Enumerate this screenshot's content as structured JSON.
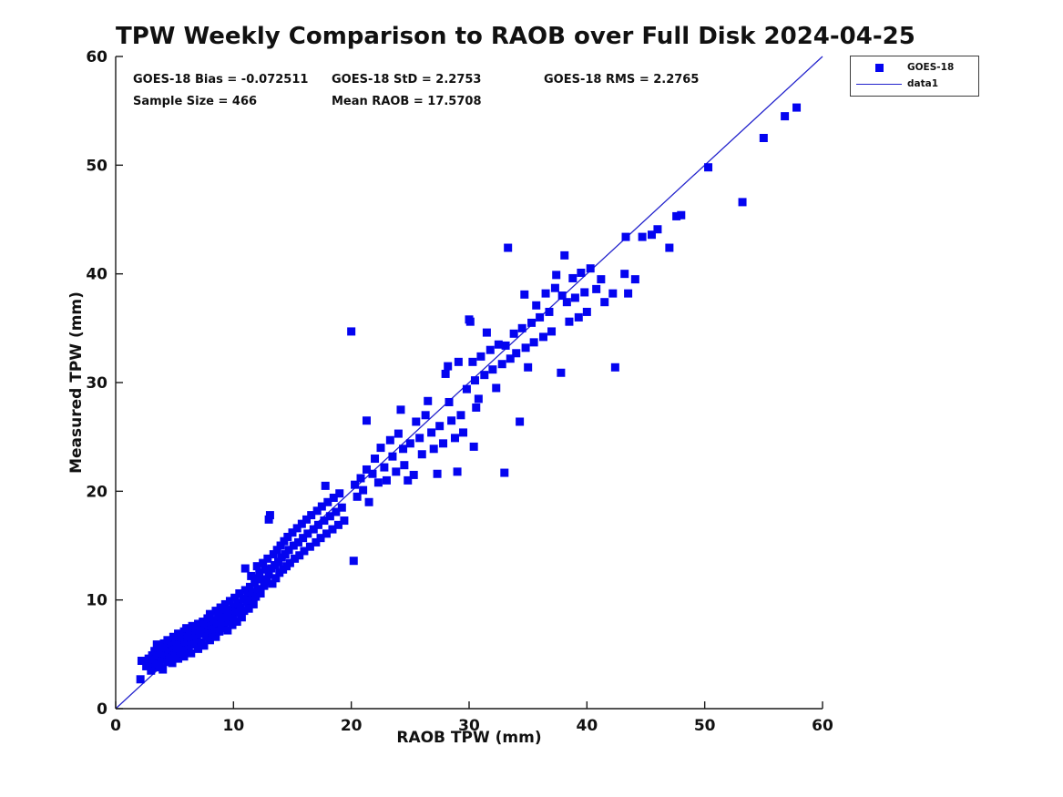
{
  "title": "TPW Weekly Comparison to RAOB over Full Disk 2024-04-25",
  "stats": {
    "bias": "GOES-18 Bias = -0.072511",
    "std": "GOES-18 StD = 2.2753",
    "rms": "GOES-18 RMS = 2.2765",
    "sample_size": "Sample Size = 466",
    "mean_raob": "Mean RAOB = 17.5708"
  },
  "legend": {
    "entries": [
      {
        "label": "GOES-18",
        "marker": "filled-square",
        "color": "#0404F0"
      },
      {
        "label": "data1",
        "marker": "line",
        "color": "#2222CC"
      }
    ]
  },
  "colors": {
    "marker": "#0404F0",
    "line": "#2222CC",
    "axis": "#1a1a1a",
    "text": "#111111"
  },
  "chart_data": {
    "type": "scatter",
    "title": "TPW Weekly Comparison to RAOB over Full Disk 2024-04-25",
    "xlabel": "RAOB TPW (mm)",
    "ylabel": "Measured TPW (mm)",
    "xlim": [
      0,
      60
    ],
    "ylim": [
      0,
      60
    ],
    "xticks": [
      0,
      10,
      20,
      30,
      40,
      50,
      60
    ],
    "yticks": [
      0,
      10,
      20,
      30,
      40,
      50,
      60
    ],
    "grid": false,
    "legend_position": "outside-top-right",
    "annotations": [
      "GOES-18 Bias = -0.072511",
      "GOES-18 StD = 2.2753",
      "GOES-18 RMS = 2.2765",
      "Sample Size = 466",
      "Mean RAOB = 17.5708"
    ],
    "series": [
      {
        "name": "GOES-18",
        "type": "scatter",
        "marker": "filled-square",
        "color": "#0404F0",
        "points": [
          [
            2.2,
            4.4
          ],
          [
            2.1,
            2.7
          ],
          [
            2.6,
            3.9
          ],
          [
            2.8,
            4.6
          ],
          [
            3.0,
            3.5
          ],
          [
            3.1,
            4.9
          ],
          [
            3.2,
            4.2
          ],
          [
            3.3,
            5.3
          ],
          [
            3.4,
            3.8
          ],
          [
            3.5,
            4.6
          ],
          [
            3.5,
            5.9
          ],
          [
            3.6,
            4.9
          ],
          [
            3.7,
            4.1
          ],
          [
            3.8,
            5.5
          ],
          [
            3.9,
            4.5
          ],
          [
            4.0,
            5.1
          ],
          [
            4.0,
            3.6
          ],
          [
            4.1,
            6.0
          ],
          [
            4.2,
            4.8
          ],
          [
            4.3,
            5.6
          ],
          [
            4.4,
            4.3
          ],
          [
            4.4,
            6.3
          ],
          [
            4.5,
            5.2
          ],
          [
            4.6,
            4.7
          ],
          [
            4.7,
            6.0
          ],
          [
            4.8,
            5.4
          ],
          [
            4.8,
            4.2
          ],
          [
            4.9,
            6.6
          ],
          [
            5.0,
            5.8
          ],
          [
            5.0,
            4.9
          ],
          [
            5.1,
            6.2
          ],
          [
            5.2,
            5.5
          ],
          [
            5.3,
            4.6
          ],
          [
            5.3,
            6.9
          ],
          [
            5.4,
            5.9
          ],
          [
            5.5,
            5.1
          ],
          [
            5.6,
            6.5
          ],
          [
            5.7,
            5.6
          ],
          [
            5.8,
            7.1
          ],
          [
            5.8,
            4.8
          ],
          [
            5.9,
            6.1
          ],
          [
            6.0,
            5.4
          ],
          [
            6.0,
            7.4
          ],
          [
            6.1,
            6.6
          ],
          [
            6.2,
            5.8
          ],
          [
            6.3,
            7.0
          ],
          [
            6.4,
            6.2
          ],
          [
            6.4,
            5.1
          ],
          [
            6.5,
            7.6
          ],
          [
            6.6,
            6.7
          ],
          [
            6.7,
            5.9
          ],
          [
            6.8,
            7.2
          ],
          [
            6.9,
            6.4
          ],
          [
            7.0,
            7.8
          ],
          [
            7.0,
            5.5
          ],
          [
            7.1,
            6.9
          ],
          [
            7.2,
            7.4
          ],
          [
            7.3,
            6.1
          ],
          [
            7.4,
            8.0
          ],
          [
            7.5,
            7.0
          ],
          [
            7.5,
            5.8
          ],
          [
            7.6,
            7.7
          ],
          [
            7.7,
            6.6
          ],
          [
            7.8,
            8.3
          ],
          [
            7.9,
            7.2
          ],
          [
            8.0,
            6.3
          ],
          [
            8.0,
            8.7
          ],
          [
            8.1,
            7.6
          ],
          [
            8.2,
            6.9
          ],
          [
            8.3,
            8.1
          ],
          [
            8.4,
            7.3
          ],
          [
            8.5,
            9.0
          ],
          [
            8.5,
            6.6
          ],
          [
            8.6,
            7.9
          ],
          [
            8.7,
            8.5
          ],
          [
            8.8,
            7.1
          ],
          [
            8.9,
            9.3
          ],
          [
            9.0,
            8.2
          ],
          [
            9.0,
            7.4
          ],
          [
            9.1,
            8.8
          ],
          [
            9.2,
            7.8
          ],
          [
            9.3,
            9.6
          ],
          [
            9.4,
            8.4
          ],
          [
            9.5,
            7.2
          ],
          [
            9.5,
            9.1
          ],
          [
            9.6,
            8.0
          ],
          [
            9.7,
            9.9
          ],
          [
            9.8,
            8.7
          ],
          [
            9.9,
            7.7
          ],
          [
            10.0,
            9.4
          ],
          [
            10.0,
            8.3
          ],
          [
            10.1,
            10.2
          ],
          [
            10.2,
            9.0
          ],
          [
            10.3,
            8.0
          ],
          [
            10.4,
            9.7
          ],
          [
            10.5,
            8.8
          ],
          [
            10.5,
            10.6
          ],
          [
            10.6,
            9.3
          ],
          [
            10.7,
            8.4
          ],
          [
            10.8,
            10.1
          ],
          [
            10.9,
            9.0
          ],
          [
            11.0,
            10.9
          ],
          [
            11.0,
            12.9
          ],
          [
            11.1,
            9.8
          ],
          [
            11.2,
            10.4
          ],
          [
            11.3,
            9.2
          ],
          [
            11.4,
            11.2
          ],
          [
            11.5,
            10.0
          ],
          [
            11.5,
            12.2
          ],
          [
            11.6,
            10.7
          ],
          [
            11.7,
            9.6
          ],
          [
            11.8,
            11.6
          ],
          [
            11.9,
            10.3
          ],
          [
            12.0,
            12.0
          ],
          [
            12.0,
            13.1
          ],
          [
            12.1,
            11.0
          ],
          [
            12.2,
            12.5
          ],
          [
            12.3,
            10.6
          ],
          [
            12.4,
            11.9
          ],
          [
            12.5,
            13.4
          ],
          [
            12.6,
            11.3
          ],
          [
            12.7,
            12.8
          ],
          [
            12.8,
            11.7
          ],
          [
            12.9,
            13.8
          ],
          [
            13.0,
            12.3
          ],
          [
            13.0,
            17.4
          ],
          [
            13.1,
            17.8
          ],
          [
            13.2,
            12.9
          ],
          [
            13.3,
            11.5
          ],
          [
            13.4,
            14.2
          ],
          [
            13.5,
            13.2
          ],
          [
            13.6,
            12.0
          ],
          [
            13.7,
            14.6
          ],
          [
            13.8,
            13.5
          ],
          [
            13.9,
            12.5
          ],
          [
            14.0,
            15.0
          ],
          [
            14.1,
            13.9
          ],
          [
            14.2,
            12.8
          ],
          [
            14.3,
            15.4
          ],
          [
            14.4,
            14.2
          ],
          [
            14.5,
            13.1
          ],
          [
            14.6,
            15.8
          ],
          [
            14.7,
            14.6
          ],
          [
            14.8,
            13.4
          ],
          [
            15.0,
            16.2
          ],
          [
            15.1,
            15.0
          ],
          [
            15.2,
            13.8
          ],
          [
            15.4,
            16.6
          ],
          [
            15.5,
            15.3
          ],
          [
            15.6,
            14.1
          ],
          [
            15.8,
            17.0
          ],
          [
            15.9,
            15.7
          ],
          [
            16.0,
            14.5
          ],
          [
            16.2,
            17.4
          ],
          [
            16.3,
            16.1
          ],
          [
            16.5,
            14.9
          ],
          [
            16.6,
            17.8
          ],
          [
            16.8,
            16.5
          ],
          [
            17.0,
            15.3
          ],
          [
            17.1,
            18.2
          ],
          [
            17.2,
            16.9
          ],
          [
            17.4,
            15.7
          ],
          [
            17.5,
            18.6
          ],
          [
            17.7,
            17.3
          ],
          [
            17.8,
            20.5
          ],
          [
            17.9,
            16.1
          ],
          [
            18.0,
            19.0
          ],
          [
            18.2,
            17.7
          ],
          [
            18.4,
            16.5
          ],
          [
            18.5,
            19.4
          ],
          [
            18.7,
            18.1
          ],
          [
            18.9,
            16.9
          ],
          [
            19.0,
            19.8
          ],
          [
            19.2,
            18.5
          ],
          [
            19.4,
            17.3
          ],
          [
            20.0,
            34.7
          ],
          [
            20.2,
            13.6
          ],
          [
            20.3,
            20.6
          ],
          [
            20.5,
            19.5
          ],
          [
            20.8,
            21.2
          ],
          [
            21.3,
            26.5
          ],
          [
            21.0,
            20.1
          ],
          [
            21.3,
            22.0
          ],
          [
            21.5,
            19.0
          ],
          [
            21.8,
            21.6
          ],
          [
            22.0,
            23.0
          ],
          [
            22.3,
            20.8
          ],
          [
            22.5,
            24.0
          ],
          [
            22.8,
            22.2
          ],
          [
            23.0,
            21.0
          ],
          [
            23.3,
            24.7
          ],
          [
            23.5,
            23.2
          ],
          [
            23.8,
            21.8
          ],
          [
            24.0,
            25.3
          ],
          [
            24.2,
            27.5
          ],
          [
            24.4,
            23.9
          ],
          [
            24.5,
            22.4
          ],
          [
            24.8,
            21.0
          ],
          [
            25.0,
            24.4
          ],
          [
            25.3,
            21.5
          ],
          [
            25.5,
            26.4
          ],
          [
            25.8,
            24.9
          ],
          [
            26.0,
            23.4
          ],
          [
            26.3,
            27.0
          ],
          [
            26.5,
            28.3
          ],
          [
            26.8,
            25.4
          ],
          [
            27.0,
            23.9
          ],
          [
            27.3,
            21.6
          ],
          [
            27.5,
            26.0
          ],
          [
            27.8,
            24.4
          ],
          [
            28.0,
            30.8
          ],
          [
            28.2,
            31.5
          ],
          [
            28.3,
            28.2
          ],
          [
            28.5,
            26.5
          ],
          [
            28.8,
            24.9
          ],
          [
            29.0,
            21.8
          ],
          [
            29.1,
            31.9
          ],
          [
            29.3,
            27.0
          ],
          [
            29.5,
            25.4
          ],
          [
            29.8,
            29.4
          ],
          [
            30.0,
            35.8
          ],
          [
            30.1,
            35.6
          ],
          [
            30.3,
            31.9
          ],
          [
            30.4,
            24.1
          ],
          [
            30.5,
            30.2
          ],
          [
            30.6,
            27.7
          ],
          [
            30.8,
            28.5
          ],
          [
            31.0,
            32.4
          ],
          [
            31.3,
            30.7
          ],
          [
            31.5,
            34.6
          ],
          [
            31.8,
            33.0
          ],
          [
            32.0,
            31.2
          ],
          [
            32.3,
            29.5
          ],
          [
            32.5,
            33.5
          ],
          [
            32.8,
            31.7
          ],
          [
            33.0,
            21.7
          ],
          [
            33.1,
            33.4
          ],
          [
            33.3,
            42.4
          ],
          [
            33.5,
            32.2
          ],
          [
            33.8,
            34.5
          ],
          [
            34.0,
            32.7
          ],
          [
            34.3,
            26.4
          ],
          [
            34.5,
            35.0
          ],
          [
            34.7,
            38.1
          ],
          [
            34.8,
            33.2
          ],
          [
            35.0,
            31.4
          ],
          [
            35.3,
            35.5
          ],
          [
            35.5,
            33.7
          ],
          [
            35.7,
            37.1
          ],
          [
            36.0,
            36.0
          ],
          [
            36.3,
            34.2
          ],
          [
            36.5,
            38.2
          ],
          [
            36.8,
            36.5
          ],
          [
            37.0,
            34.7
          ],
          [
            37.3,
            38.7
          ],
          [
            37.4,
            39.9
          ],
          [
            37.8,
            30.9
          ],
          [
            37.9,
            38.0
          ],
          [
            38.1,
            41.7
          ],
          [
            38.3,
            37.4
          ],
          [
            38.5,
            35.6
          ],
          [
            38.8,
            39.6
          ],
          [
            39.0,
            37.8
          ],
          [
            39.3,
            36.0
          ],
          [
            39.5,
            40.1
          ],
          [
            39.8,
            38.3
          ],
          [
            40.0,
            36.5
          ],
          [
            40.3,
            40.5
          ],
          [
            40.8,
            38.6
          ],
          [
            41.2,
            39.5
          ],
          [
            41.5,
            37.4
          ],
          [
            42.2,
            38.2
          ],
          [
            42.4,
            31.4
          ],
          [
            43.2,
            40.0
          ],
          [
            43.3,
            43.4
          ],
          [
            43.5,
            38.2
          ],
          [
            44.1,
            39.5
          ],
          [
            44.7,
            43.4
          ],
          [
            45.5,
            43.6
          ],
          [
            46.0,
            44.1
          ],
          [
            47.0,
            42.4
          ],
          [
            47.6,
            45.3
          ],
          [
            48.0,
            45.4
          ],
          [
            50.3,
            49.8
          ],
          [
            53.2,
            46.6
          ],
          [
            55.0,
            52.5
          ],
          [
            56.8,
            54.5
          ],
          [
            57.8,
            55.3
          ]
        ]
      },
      {
        "name": "data1",
        "type": "line",
        "color": "#2222CC",
        "points": [
          [
            0,
            0
          ],
          [
            60,
            60
          ]
        ]
      }
    ]
  }
}
